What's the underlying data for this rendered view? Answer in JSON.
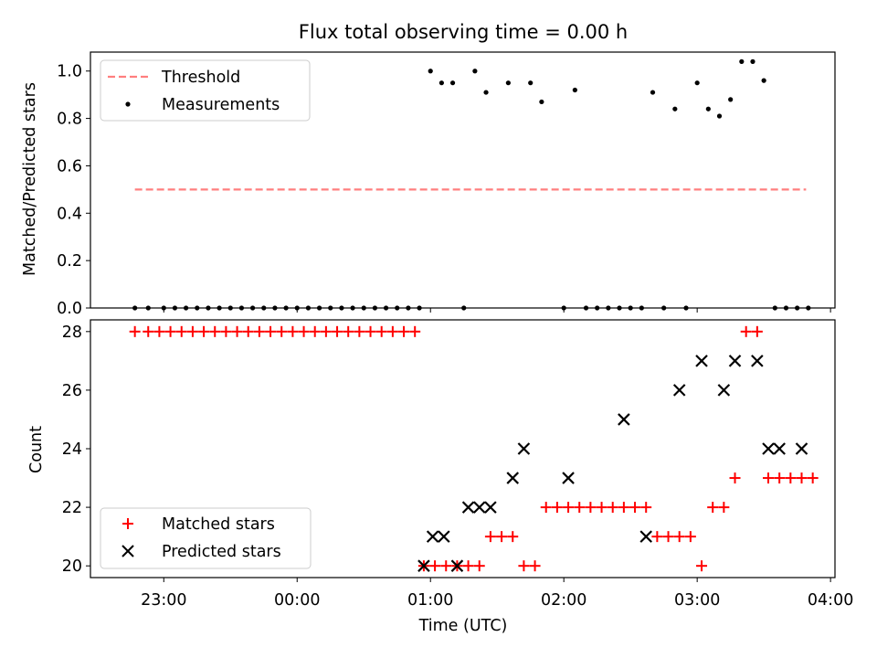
{
  "chart_data": [
    {
      "type": "scatter",
      "title": "Flux total observing time = 0.00 h",
      "xlabel": "",
      "ylabel": "Matched/Predicted stars",
      "ylim": [
        0,
        1.08
      ],
      "xlim": [
        "22:27",
        "04:02"
      ],
      "y_ticks": [
        "0.0",
        "0.2",
        "0.4",
        "0.6",
        "0.8",
        "1.0"
      ],
      "legend": {
        "position": "top-left",
        "entries": [
          "Threshold",
          "Measurements"
        ]
      },
      "colors": {
        "threshold": "#ff7f7f",
        "measurements": "#000000"
      },
      "threshold": {
        "name": "Threshold",
        "y": 0.5,
        "x_start": "22:47",
        "x_end": "03:49"
      },
      "series": [
        {
          "name": "Measurements",
          "x": [
            "22:47",
            "22:53",
            "23:00",
            "23:05",
            "23:10",
            "23:15",
            "23:20",
            "23:25",
            "23:30",
            "23:35",
            "23:40",
            "23:45",
            "23:50",
            "23:55",
            "00:00",
            "00:05",
            "00:10",
            "00:15",
            "00:20",
            "00:25",
            "00:30",
            "00:35",
            "00:40",
            "00:45",
            "00:50",
            "00:55",
            "01:00",
            "01:05",
            "01:10",
            "01:15",
            "01:20",
            "01:25",
            "01:35",
            "01:45",
            "01:50",
            "02:00",
            "02:05",
            "02:10",
            "02:15",
            "02:20",
            "02:25",
            "02:30",
            "02:35",
            "02:40",
            "02:45",
            "02:50",
            "02:55",
            "03:00",
            "03:05",
            "03:10",
            "03:15",
            "03:20",
            "03:25",
            "03:30",
            "03:35",
            "03:40",
            "03:45",
            "03:50"
          ],
          "y": [
            0,
            0,
            0,
            0,
            0,
            0,
            0,
            0,
            0,
            0,
            0,
            0,
            0,
            0,
            0,
            0,
            0,
            0,
            0,
            0,
            0,
            0,
            0,
            0,
            0,
            0,
            1.0,
            0.95,
            0.95,
            0,
            1.0,
            0.91,
            0.95,
            0.95,
            0.87,
            0,
            0.92,
            0,
            0,
            0,
            0,
            0,
            0,
            0.91,
            0,
            0.84,
            0,
            0.95,
            0.84,
            0.81,
            0.88,
            1.04,
            1.04,
            0.96,
            0,
            0,
            0,
            0
          ]
        }
      ]
    },
    {
      "type": "scatter",
      "title": "",
      "xlabel": "Time (UTC)",
      "ylabel": "Count",
      "ylim": [
        19.6,
        28.4
      ],
      "xlim": [
        "22:27",
        "04:02"
      ],
      "x_ticks": [
        "23:00",
        "00:00",
        "01:00",
        "02:00",
        "03:00",
        "04:00"
      ],
      "y_ticks": [
        "20",
        "22",
        "24",
        "26",
        "28"
      ],
      "legend": {
        "position": "bottom-left",
        "entries": [
          "Matched stars",
          "Predicted stars"
        ]
      },
      "colors": {
        "matched": "#ff0000",
        "predicted": "#000000"
      },
      "series": [
        {
          "name": "Matched stars",
          "x": [
            "22:47",
            "22:53",
            "22:58",
            "23:03",
            "23:08",
            "23:13",
            "23:18",
            "23:23",
            "23:28",
            "23:33",
            "23:38",
            "23:43",
            "23:48",
            "23:53",
            "23:58",
            "00:03",
            "00:08",
            "00:13",
            "00:18",
            "00:23",
            "00:28",
            "00:33",
            "00:38",
            "00:43",
            "00:48",
            "00:53",
            "00:57",
            "01:02",
            "01:07",
            "01:12",
            "01:17",
            "01:22",
            "01:27",
            "01:32",
            "01:37",
            "01:42",
            "01:47",
            "01:52",
            "01:57",
            "02:02",
            "02:07",
            "02:12",
            "02:17",
            "02:22",
            "02:27",
            "02:32",
            "02:37",
            "02:42",
            "02:47",
            "02:52",
            "02:57",
            "03:02",
            "03:07",
            "03:12",
            "03:17",
            "03:22",
            "03:27",
            "03:32",
            "03:37",
            "03:42",
            "03:47",
            "03:52"
          ],
          "y": [
            28,
            28,
            28,
            28,
            28,
            28,
            28,
            28,
            28,
            28,
            28,
            28,
            28,
            28,
            28,
            28,
            28,
            28,
            28,
            28,
            28,
            28,
            28,
            28,
            28,
            28,
            20,
            20,
            20,
            20,
            20,
            20,
            21,
            21,
            21,
            20,
            20,
            22,
            22,
            22,
            22,
            22,
            22,
            22,
            22,
            22,
            22,
            21,
            21,
            21,
            21,
            20,
            22,
            22,
            23,
            28,
            28,
            23,
            23,
            23,
            23,
            23
          ]
        },
        {
          "name": "Predicted stars",
          "x": [
            "00:57",
            "01:01",
            "01:06",
            "01:12",
            "01:17",
            "01:22",
            "01:27",
            "01:37",
            "01:42",
            "02:02",
            "02:27",
            "02:37",
            "02:52",
            "03:02",
            "03:12",
            "03:17",
            "03:27",
            "03:32",
            "03:37",
            "03:47"
          ],
          "y": [
            20,
            21,
            21,
            20,
            22,
            22,
            22,
            23,
            24,
            23,
            25,
            21,
            26,
            27,
            26,
            27,
            27,
            24,
            24,
            24
          ]
        }
      ]
    }
  ]
}
